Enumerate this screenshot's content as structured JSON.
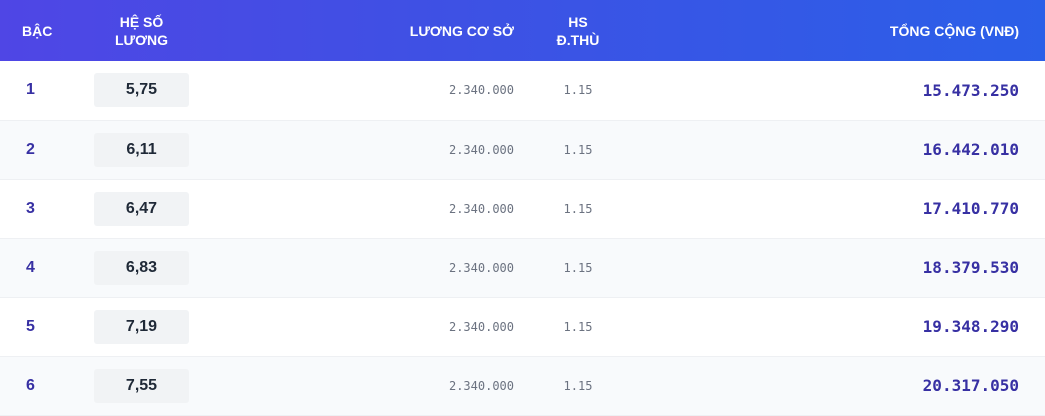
{
  "header": {
    "level": "BẬC",
    "coef_line1": "HỆ SỐ",
    "coef_line2": "LƯƠNG",
    "base": "LƯƠNG CƠ SỞ",
    "special_line1": "HS",
    "special_line2": "Đ.THÙ",
    "total": "TỔNG CỘNG (VNĐ)"
  },
  "colors": {
    "header_start": "#4f46e5",
    "header_end": "#2b5fe8",
    "accent_text": "#3730a3"
  },
  "rows": [
    {
      "level": "1",
      "coef": "5,75",
      "base": "2.340.000",
      "special": "1.15",
      "total": "15.473.250"
    },
    {
      "level": "2",
      "coef": "6,11",
      "base": "2.340.000",
      "special": "1.15",
      "total": "16.442.010"
    },
    {
      "level": "3",
      "coef": "6,47",
      "base": "2.340.000",
      "special": "1.15",
      "total": "17.410.770"
    },
    {
      "level": "4",
      "coef": "6,83",
      "base": "2.340.000",
      "special": "1.15",
      "total": "18.379.530"
    },
    {
      "level": "5",
      "coef": "7,19",
      "base": "2.340.000",
      "special": "1.15",
      "total": "19.348.290"
    },
    {
      "level": "6",
      "coef": "7,55",
      "base": "2.340.000",
      "special": "1.15",
      "total": "20.317.050"
    }
  ]
}
